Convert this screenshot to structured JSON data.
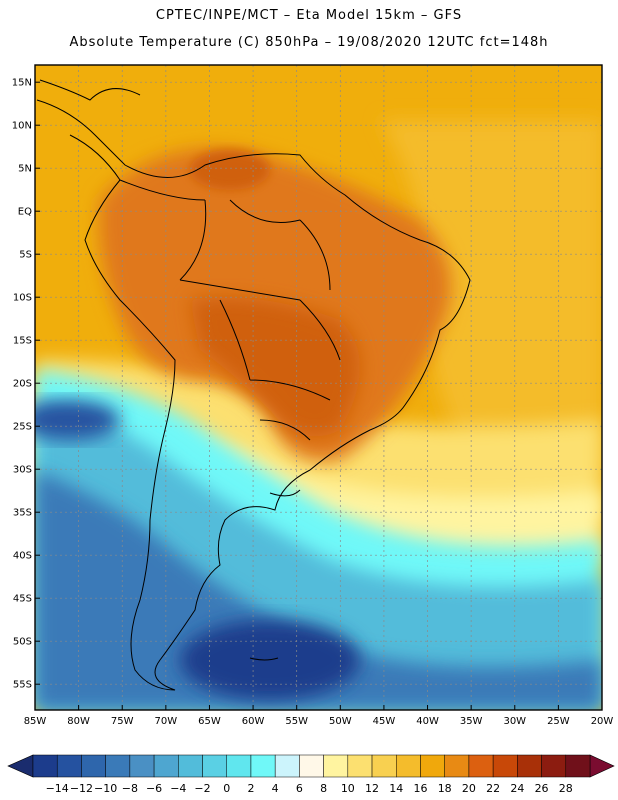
{
  "header": {
    "line1": "CPTEC/INPE/MCT –  Eta Model 15km – GFS",
    "line2": "Absolute Temperature (C) 850hPa – 19/08/2020 12UTC fct=148h"
  },
  "map": {
    "lat_labels": [
      "15N",
      "10N",
      "5N",
      "EQ",
      "5S",
      "10S",
      "15S",
      "20S",
      "25S",
      "30S",
      "35S",
      "40S",
      "45S",
      "50S",
      "55S"
    ],
    "lon_labels": [
      "85W",
      "80W",
      "75W",
      "70W",
      "65W",
      "60W",
      "55W",
      "50W",
      "45W",
      "40W",
      "35W",
      "30W",
      "25W",
      "20W"
    ],
    "lon_range": [
      -85,
      -20
    ],
    "lat_range": [
      -58,
      17
    ],
    "gridlines": true,
    "colors": {
      "sea_warm": "#f0ae0c",
      "land_hot": "#e0781a",
      "cold_ocean": "#3ab4d6",
      "coast_line": "#000000"
    }
  },
  "colorbar": {
    "labels": [
      "-14",
      "-12",
      "-10",
      "-8",
      "-6",
      "-4",
      "-2",
      "0",
      "2",
      "4",
      "6",
      "8",
      "10",
      "12",
      "14",
      "16",
      "18",
      "20",
      "22",
      "24",
      "26",
      "28"
    ],
    "colors": [
      "#1c3c8c",
      "#2552a0",
      "#2e66ac",
      "#3a7ab8",
      "#4a90c4",
      "#4ea6d0",
      "#52bcda",
      "#5ad0e4",
      "#60e6ee",
      "#70f8f8",
      "#ccf4fc",
      "#fff8e8",
      "#fff4a0",
      "#fce070",
      "#f8d050",
      "#f4bc2c",
      "#f0a80c",
      "#e88a14",
      "#dc6010",
      "#c84808",
      "#a83008",
      "#8c1c10",
      "#70101a"
    ],
    "underflow_color": "#1a2c6e",
    "overflow_color": "#7a0c30"
  }
}
